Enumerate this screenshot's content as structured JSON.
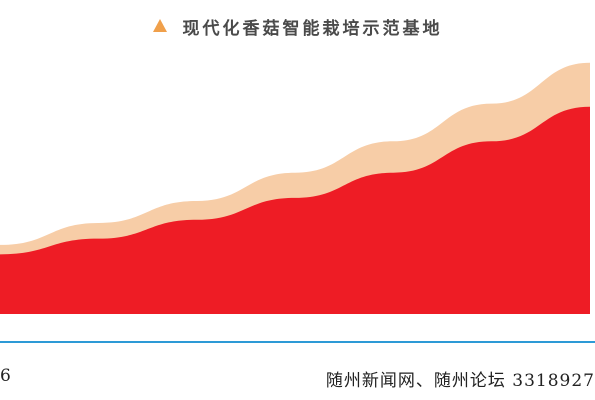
{
  "title": "现代化香菇智能栽培示范基地",
  "title_marker_icon": "triangle-up-icon",
  "colors": {
    "marker": "#f0a04b",
    "series_back": "#f7cda7",
    "series_front": "#ee1c25",
    "baseline": "#2d9ad6"
  },
  "footer": {
    "left_text": "6",
    "right_text": "随州新闻网、随州论坛 3318927"
  },
  "chart_data": {
    "type": "area",
    "title": "现代化香菇智能栽培示范基地",
    "xlabel": "",
    "ylabel": "",
    "grid": false,
    "legend": "none",
    "x": [
      0,
      1,
      2,
      3,
      4,
      5,
      6
    ],
    "ylim": [
      0,
      1
    ],
    "series": [
      {
        "values": [
          0.22,
          0.29,
          0.36,
          0.45,
          0.55,
          0.67,
          0.8
        ]
      },
      {
        "values": [
          0.19,
          0.24,
          0.3,
          0.37,
          0.45,
          0.55,
          0.66
        ]
      }
    ]
  }
}
